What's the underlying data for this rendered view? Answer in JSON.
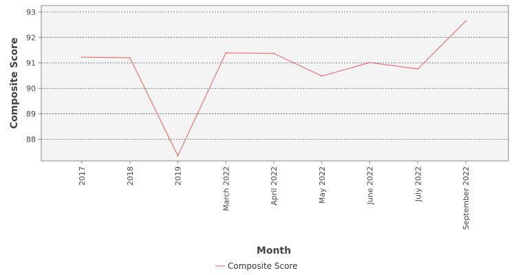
{
  "chart_data": {
    "type": "line",
    "title": "",
    "xlabel": "Month",
    "ylabel": "Composite Score",
    "categories": [
      "2017",
      "2018",
      "2019",
      "March 2022",
      "April 2022",
      "May 2022",
      "June 2022",
      "July 2022",
      "September 2022"
    ],
    "series": [
      {
        "name": "Composite Score",
        "color": "#f05a5a",
        "values": [
          91.22,
          91.2,
          87.35,
          91.39,
          91.37,
          90.48,
          91.01,
          90.76,
          92.64
        ]
      }
    ],
    "y_ticks": [
      "88",
      "89",
      "90",
      "91",
      "92",
      "93"
    ],
    "ylim": [
      87.15,
      93.25
    ],
    "grid": true,
    "legend": "bottom-center"
  }
}
